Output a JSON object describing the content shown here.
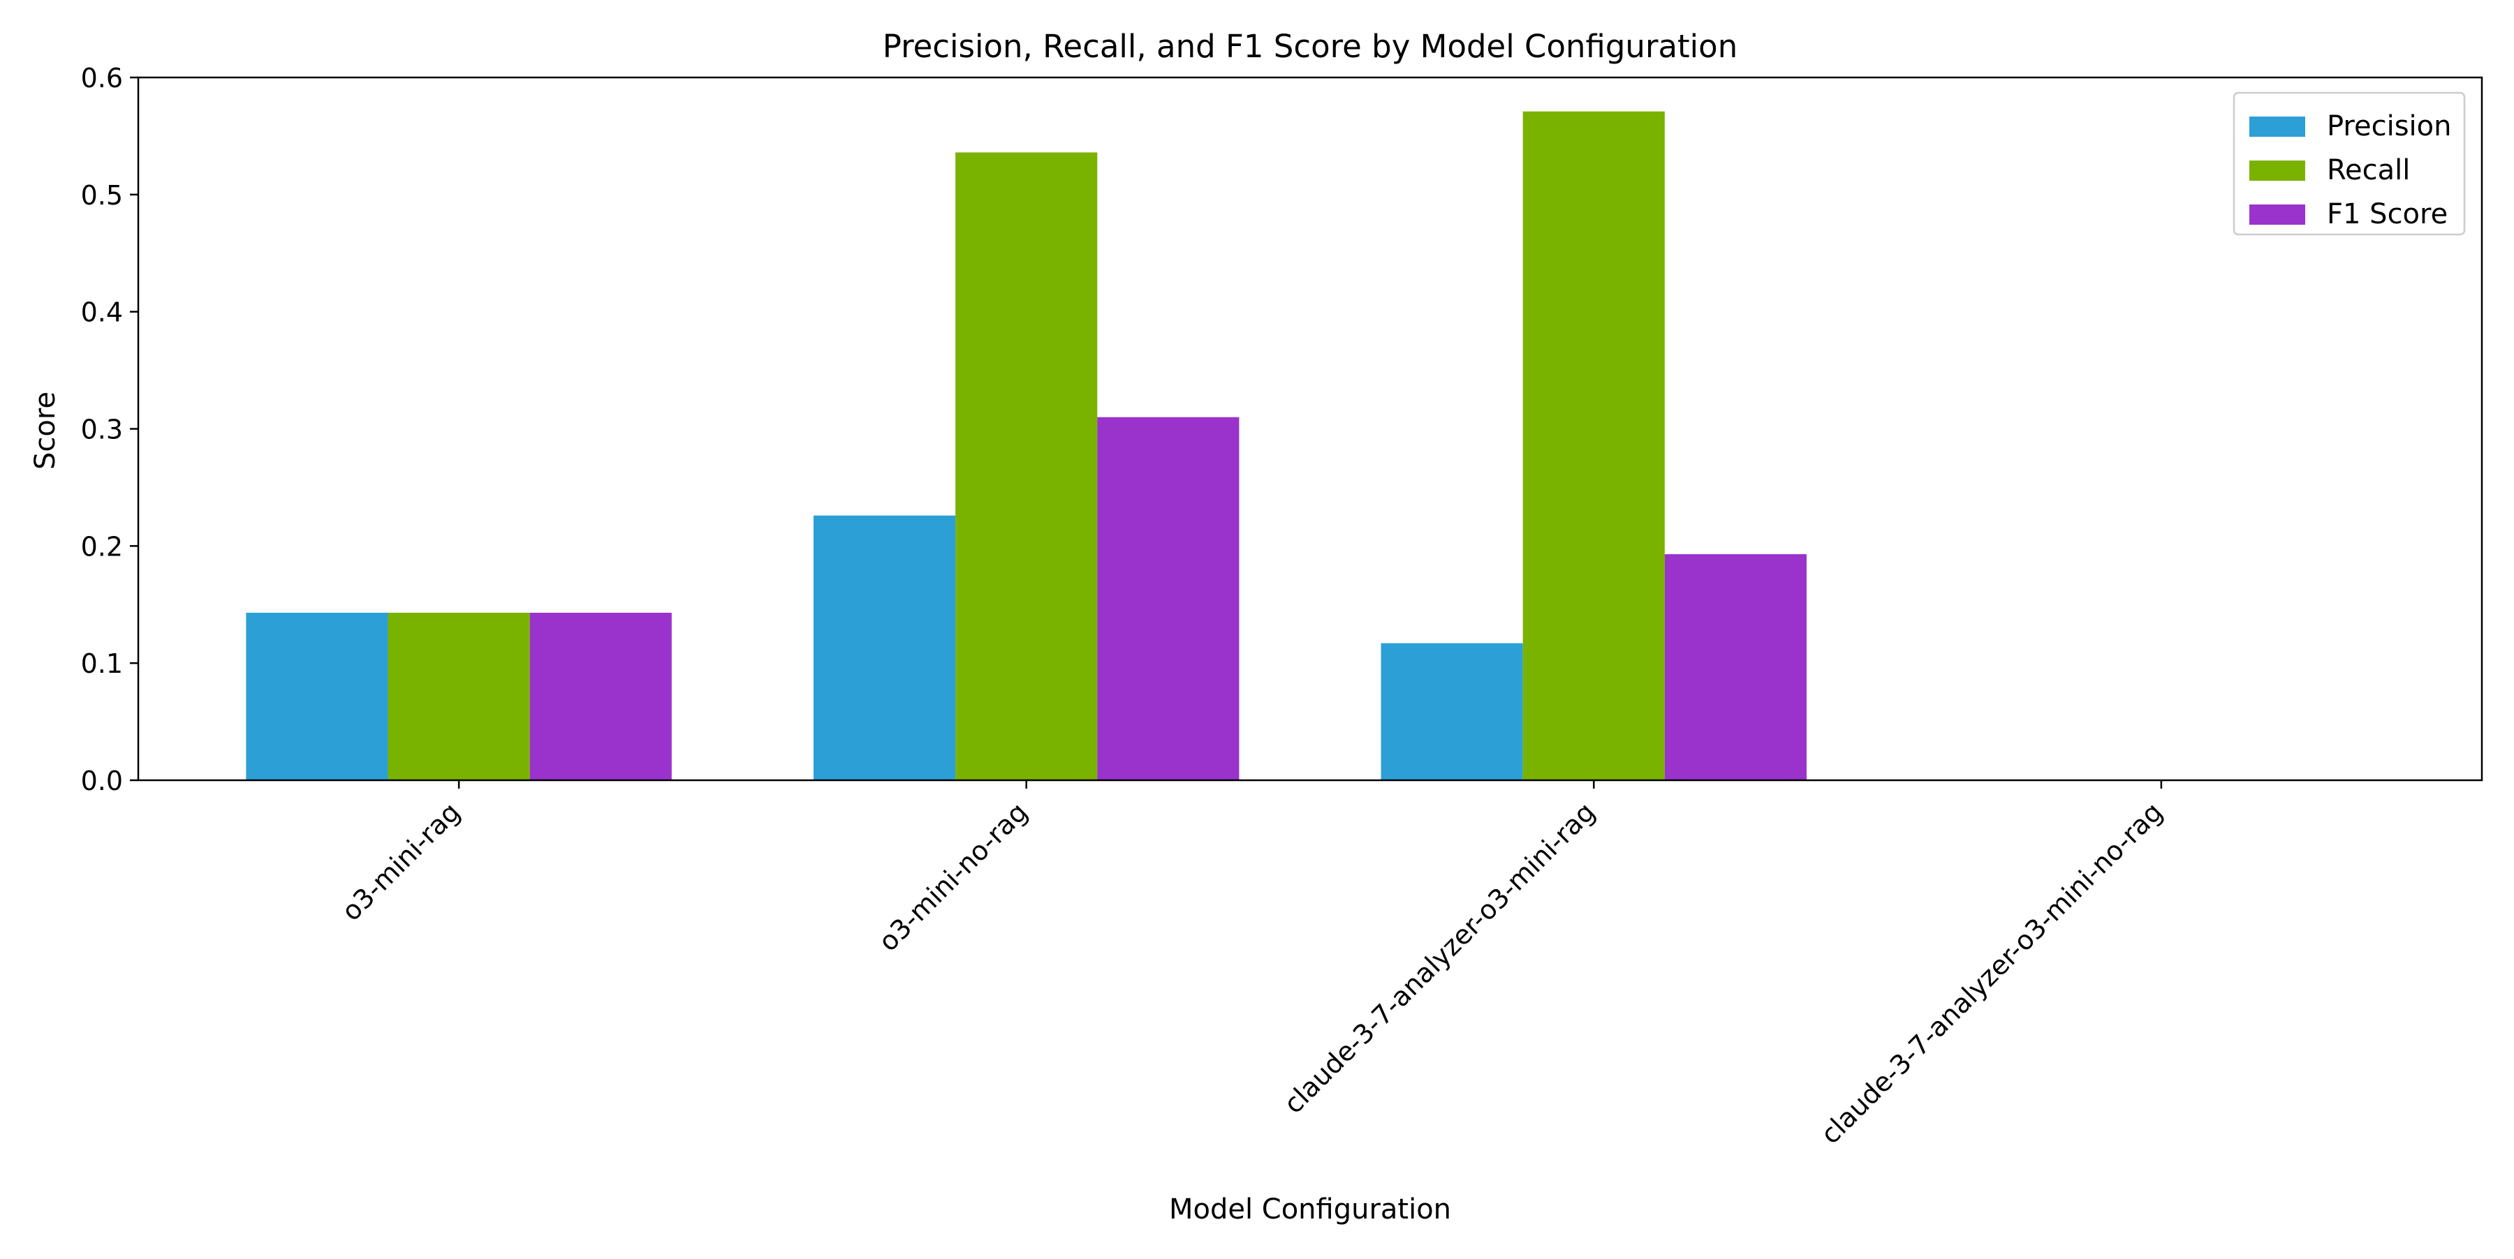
{
  "chart_data": {
    "type": "bar",
    "title": "Precision, Recall, and F1 Score by Model Configuration",
    "xlabel": "Model Configuration",
    "ylabel": "Score",
    "categories": [
      "o3-mini-rag",
      "o3-mini-no-rag",
      "claude-3-7-analyzer-o3-mini-rag",
      "claude-3-7-analyzer-o3-mini-no-rag"
    ],
    "series": [
      {
        "name": "Precision",
        "color": "#2b9fd6",
        "values": [
          0.143,
          0.226,
          0.117,
          0.0
        ]
      },
      {
        "name": "Recall",
        "color": "#7ab200",
        "values": [
          0.143,
          0.536,
          0.571,
          0.0
        ]
      },
      {
        "name": "F1 Score",
        "color": "#9933cc",
        "values": [
          0.143,
          0.31,
          0.193,
          0.0
        ]
      }
    ],
    "ylim": [
      0,
      0.6
    ],
    "yticks": [
      "0.0",
      "0.1",
      "0.2",
      "0.3",
      "0.4",
      "0.5",
      "0.6"
    ],
    "grid": false,
    "legend_position": "top-right"
  }
}
